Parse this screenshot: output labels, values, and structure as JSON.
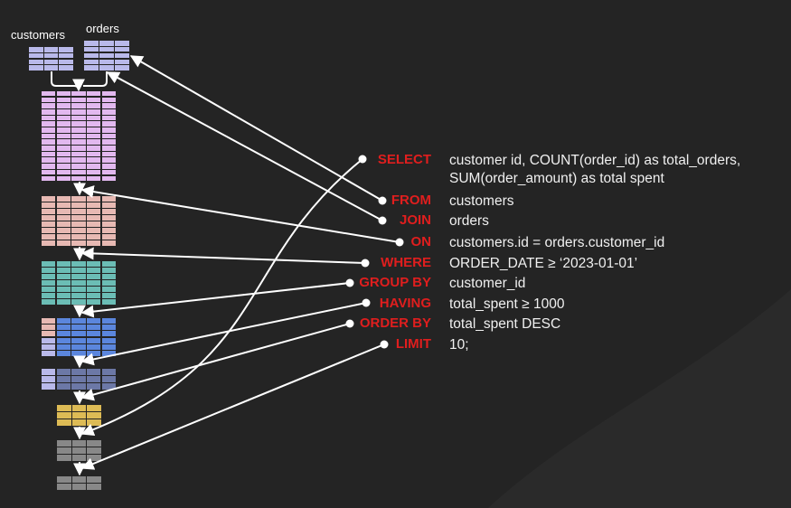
{
  "tables": {
    "customers_label": "customers",
    "orders_label": "orders"
  },
  "colors": {
    "background": "#242424",
    "keyword": "#e01e1e",
    "text": "#f0f0f0",
    "customers_table": "#b9b9ea",
    "orders_table": "#b9b9ea",
    "joined": "#e2b8ef",
    "filtered": "#e7b9b3",
    "where": "#6bbdb5",
    "group_by": "#5b86dd",
    "having": "#6c78a6",
    "order_by": "#ddbb55",
    "limit": "#888888"
  },
  "clauses": [
    {
      "keyword": "SELECT",
      "text": "customer id, COUNT(order_id) as total_orders,",
      "text2": "SUM(order_amount) as total spent"
    },
    {
      "keyword": "FROM",
      "text": "customers"
    },
    {
      "keyword": "JOIN",
      "text": "orders"
    },
    {
      "keyword": "ON",
      "text": "customers.id = orders.customer_id"
    },
    {
      "keyword": "WHERE",
      "text": "ORDER_DATE  ≥  ‘2023-01-01’"
    },
    {
      "keyword": "GROUP BY",
      "text": "customer_id"
    },
    {
      "keyword": "HAVING",
      "text": "total_spent  ≥  1000"
    },
    {
      "keyword": "ORDER BY",
      "text": "total_spent DESC"
    },
    {
      "keyword": "LIMIT",
      "text": "10;"
    }
  ]
}
